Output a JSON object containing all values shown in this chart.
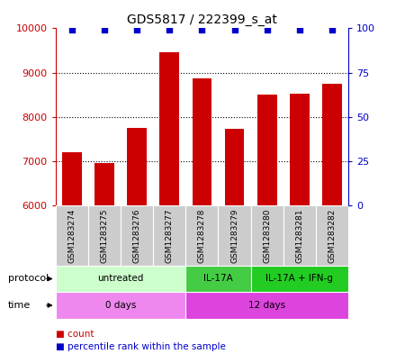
{
  "title": "GDS5817 / 222399_s_at",
  "samples": [
    "GSM1283274",
    "GSM1283275",
    "GSM1283276",
    "GSM1283277",
    "GSM1283278",
    "GSM1283279",
    "GSM1283280",
    "GSM1283281",
    "GSM1283282"
  ],
  "counts": [
    7200,
    6950,
    7750,
    9450,
    8870,
    7720,
    8500,
    8520,
    8750
  ],
  "ylim_left": [
    6000,
    10000
  ],
  "ylim_right": [
    0,
    100
  ],
  "yticks_left": [
    6000,
    7000,
    8000,
    9000,
    10000
  ],
  "yticks_right": [
    0,
    25,
    50,
    75,
    100
  ],
  "bar_color": "#cc0000",
  "dot_color": "#0000cc",
  "protocol_groups": [
    {
      "label": "untreated",
      "start": 0,
      "end": 4,
      "color": "#ccffcc"
    },
    {
      "label": "IL-17A",
      "start": 4,
      "end": 6,
      "color": "#44cc44"
    },
    {
      "label": "IL-17A + IFN-g",
      "start": 6,
      "end": 9,
      "color": "#22cc22"
    }
  ],
  "time_groups": [
    {
      "label": "0 days",
      "start": 0,
      "end": 4,
      "color": "#ee88ee"
    },
    {
      "label": "12 days",
      "start": 4,
      "end": 9,
      "color": "#dd44dd"
    }
  ],
  "protocol_label": "protocol",
  "time_label": "time",
  "legend_count_color": "#cc0000",
  "legend_dot_color": "#0000cc",
  "sample_box_color": "#cccccc",
  "left_tick_color": "#cc0000",
  "right_tick_color": "#0000cc",
  "left_spine_color": "#cc0000",
  "right_spine_color": "#0000cc"
}
